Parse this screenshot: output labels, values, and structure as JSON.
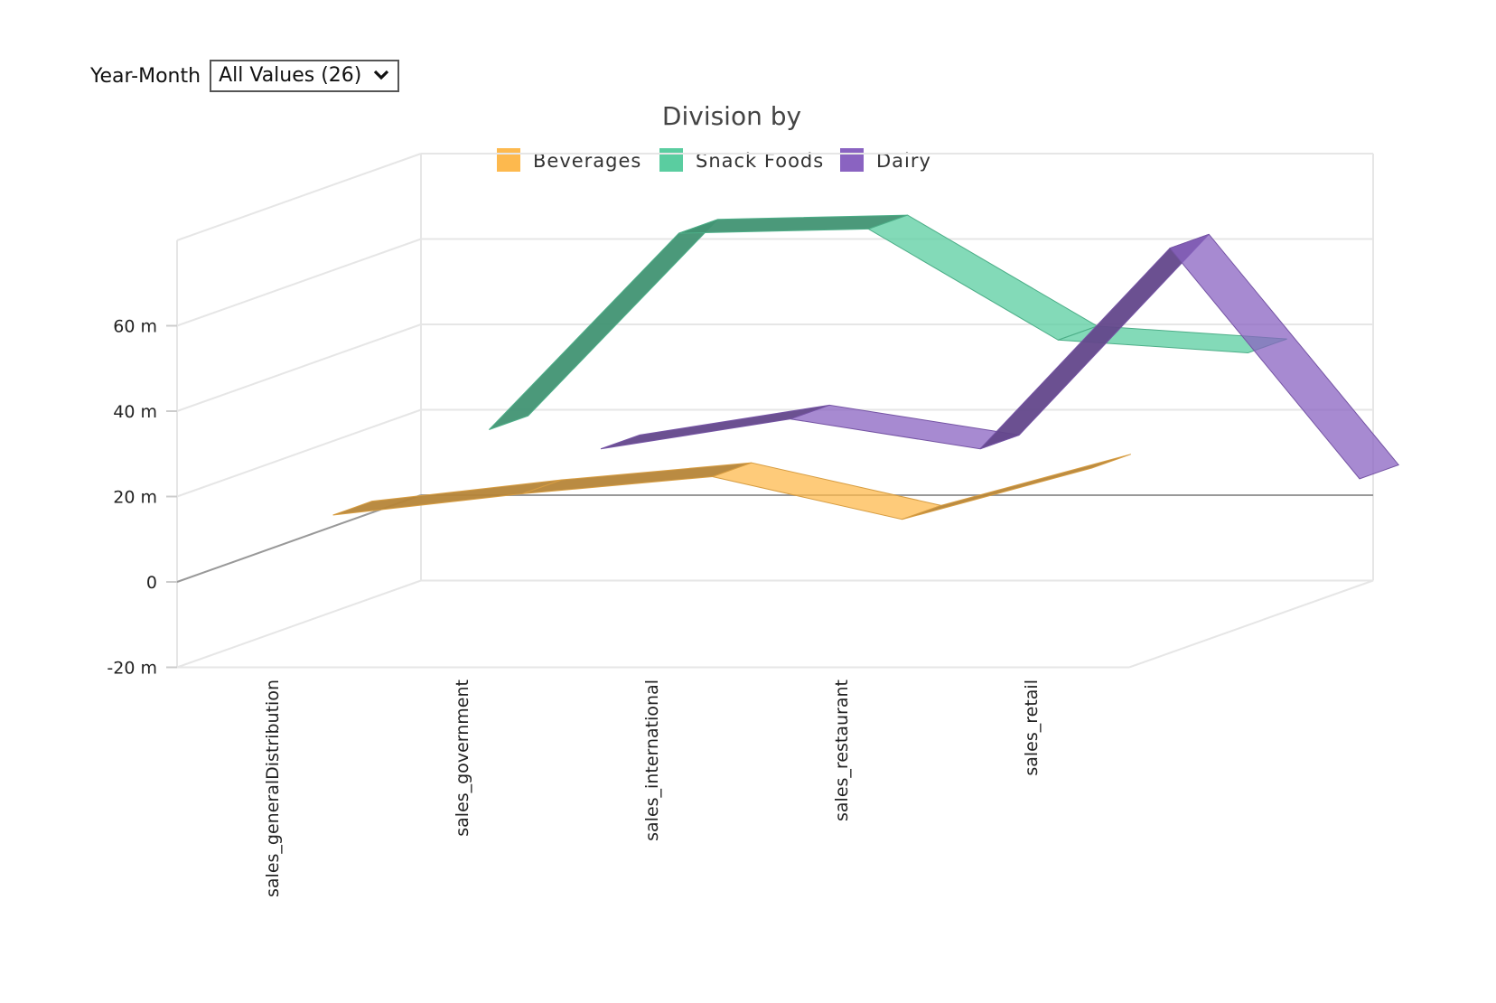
{
  "filter": {
    "label": "Year-Month",
    "selected": "All Values (26)"
  },
  "chart_data": {
    "type": "line",
    "style": "3d-ribbon",
    "title": "Division by",
    "legend_position": "top-center",
    "grid": true,
    "categories": [
      "sales_generalDistribution",
      "sales_government",
      "sales_international",
      "sales_restaurant",
      "sales_retail"
    ],
    "ylim": [
      -20000000,
      80000000
    ],
    "yticks": [
      {
        "value": -20000000,
        "label": "-20 m"
      },
      {
        "value": 0,
        "label": "0"
      },
      {
        "value": 20000000,
        "label": "20 m"
      },
      {
        "value": 40000000,
        "label": "40 m"
      },
      {
        "value": 60000000,
        "label": "60 m"
      }
    ],
    "series": [
      {
        "name": "Beverages",
        "color": "#FDB94E",
        "values": [
          12000000,
          17000000,
          21000000,
          11000000,
          23000000
        ]
      },
      {
        "name": "Snack Foods",
        "color": "#5ACDA0",
        "values": [
          19000000,
          65000000,
          66000000,
          40000000,
          37000000
        ]
      },
      {
        "name": "Dairy",
        "color": "#8A63C1",
        "values": null,
        "values_by_category": [
          null,
          21000000,
          28000000,
          21000000,
          68000000
        ],
        "extra_point": 14000000
      }
    ]
  }
}
